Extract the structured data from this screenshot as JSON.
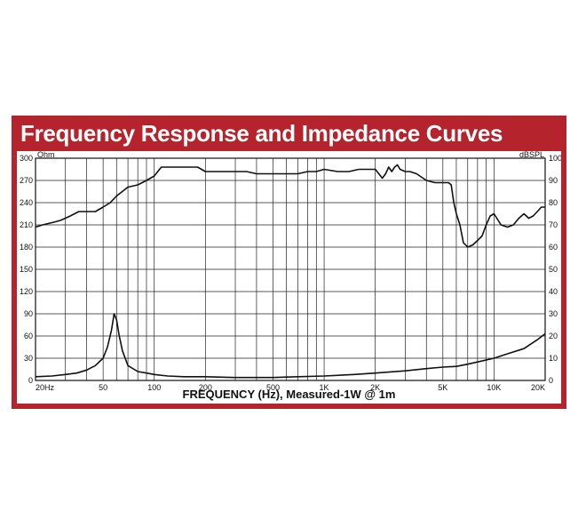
{
  "chart_data": {
    "type": "line",
    "title": "Frequency Response and Impedance Curves",
    "xlabel": "FREQUENCY (Hz), Measured-1W @ 1m",
    "xscale": "log",
    "xlim": [
      20,
      20000
    ],
    "x_ticks": [
      {
        "value": 20,
        "label": "20Hz"
      },
      {
        "value": 50,
        "label": "50"
      },
      {
        "value": 100,
        "label": "100"
      },
      {
        "value": 200,
        "label": "200"
      },
      {
        "value": 500,
        "label": "500"
      },
      {
        "value": 1000,
        "label": "1K"
      },
      {
        "value": 2000,
        "label": "2K"
      },
      {
        "value": 5000,
        "label": "5K"
      },
      {
        "value": 10000,
        "label": "10K"
      },
      {
        "value": 20000,
        "label": "20K"
      }
    ],
    "y_left": {
      "unit": "Ohm",
      "lim": [
        0,
        300
      ],
      "ticks": [
        0,
        30,
        60,
        90,
        120,
        150,
        180,
        210,
        240,
        270,
        300
      ]
    },
    "y_right": {
      "unit": "dBSPL",
      "lim": [
        0,
        100
      ],
      "ticks": [
        0,
        10,
        20,
        30,
        40,
        50,
        60,
        70,
        80,
        90,
        100
      ]
    },
    "grid": true,
    "colors": {
      "frame": "#b5242c",
      "line": "#111111",
      "grid": "#222222"
    },
    "series": [
      {
        "axis": "right",
        "x": [
          20,
          22,
          25,
          28,
          32,
          36,
          40,
          45,
          50,
          55,
          60,
          70,
          80,
          90,
          100,
          110,
          120,
          140,
          160,
          180,
          200,
          250,
          300,
          350,
          400,
          500,
          600,
          700,
          800,
          900,
          1000,
          1200,
          1400,
          1600,
          1800,
          2000,
          2100,
          2200,
          2300,
          2400,
          2500,
          2600,
          2700,
          2800,
          3000,
          3200,
          3500,
          4000,
          4500,
          5000,
          5400,
          5600,
          5800,
          6000,
          6300,
          6600,
          7000,
          7500,
          8000,
          8500,
          9000,
          9500,
          10000,
          11000,
          12000,
          13000,
          14000,
          15000,
          16000,
          17000,
          18000,
          19000,
          20000
        ],
        "y": [
          69,
          70,
          71,
          72,
          74,
          76,
          76,
          76,
          78,
          80,
          83,
          87,
          88,
          90,
          92,
          96,
          96,
          96,
          96,
          96,
          94,
          94,
          94,
          94,
          93,
          93,
          93,
          93,
          94,
          94,
          95,
          94,
          94,
          95,
          95,
          95,
          93,
          91,
          93,
          96,
          94,
          96,
          97,
          95,
          94,
          94,
          93,
          90,
          89,
          89,
          89,
          88,
          80,
          75,
          70,
          62,
          60,
          61,
          63,
          65,
          70,
          74,
          75,
          70,
          69,
          70,
          73,
          75,
          73,
          74,
          76,
          78,
          78
        ]
      },
      {
        "axis": "left",
        "x": [
          20,
          25,
          30,
          35,
          40,
          45,
          50,
          53,
          56,
          58,
          60,
          62,
          65,
          70,
          80,
          90,
          100,
          120,
          150,
          200,
          300,
          500,
          700,
          1000,
          1500,
          2000,
          3000,
          4000,
          5000,
          6000,
          7000,
          8000,
          10000,
          12000,
          15000,
          18000,
          20000
        ],
        "y": [
          5,
          6,
          8,
          10,
          14,
          20,
          30,
          45,
          68,
          90,
          82,
          62,
          40,
          20,
          12,
          10,
          8,
          6,
          5,
          5,
          4,
          4,
          5,
          6,
          8,
          10,
          13,
          16,
          18,
          19,
          22,
          25,
          30,
          36,
          43,
          55,
          63
        ]
      }
    ]
  }
}
